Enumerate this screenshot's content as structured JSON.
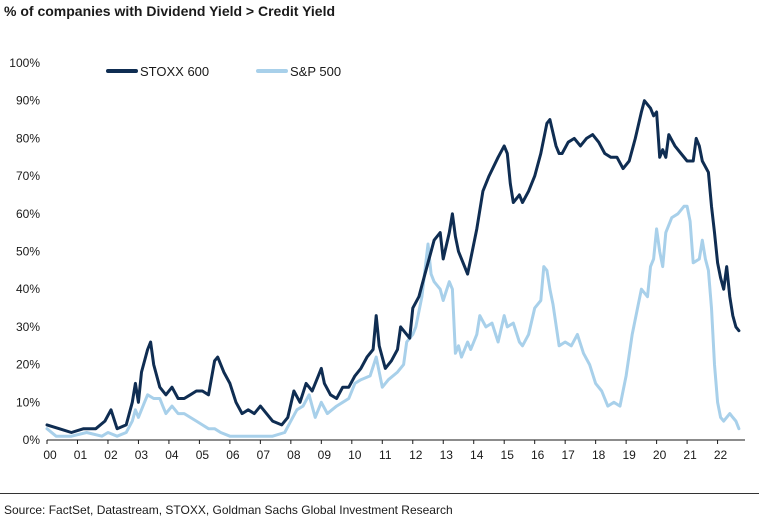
{
  "title": "% of companies with Dividend Yield > Credit Yield",
  "source": "Source: FactSet, Datastream, STOXX, Goldman Sachs Global Investment Research",
  "chart_data": {
    "type": "line",
    "title": "% of companies with Dividend Yield > Credit Yield",
    "xlabel": "",
    "ylabel": "",
    "xlim": [
      2000,
      2022.9
    ],
    "ylim": [
      0,
      100
    ],
    "xticks": [
      "00",
      "01",
      "02",
      "03",
      "04",
      "05",
      "06",
      "07",
      "08",
      "09",
      "10",
      "11",
      "12",
      "13",
      "14",
      "15",
      "16",
      "17",
      "18",
      "19",
      "20",
      "21",
      "22"
    ],
    "yticks": [
      "0%",
      "10%",
      "20%",
      "30%",
      "40%",
      "50%",
      "60%",
      "70%",
      "80%",
      "90%",
      "100%"
    ],
    "legend_position": "top-left",
    "grid": false,
    "series": [
      {
        "name": "STOXX 600",
        "color": "#0f2d52",
        "points": [
          [
            2000.0,
            4
          ],
          [
            2000.4,
            3
          ],
          [
            2000.8,
            2
          ],
          [
            2001.2,
            3
          ],
          [
            2001.6,
            3
          ],
          [
            2001.9,
            5
          ],
          [
            2002.1,
            8
          ],
          [
            2002.3,
            3
          ],
          [
            2002.6,
            4
          ],
          [
            2002.8,
            10
          ],
          [
            2002.9,
            15
          ],
          [
            2003.0,
            10
          ],
          [
            2003.1,
            18
          ],
          [
            2003.3,
            24
          ],
          [
            2003.4,
            26
          ],
          [
            2003.5,
            20
          ],
          [
            2003.7,
            14
          ],
          [
            2003.9,
            12
          ],
          [
            2004.1,
            14
          ],
          [
            2004.3,
            11
          ],
          [
            2004.5,
            11
          ],
          [
            2004.7,
            12
          ],
          [
            2004.9,
            13
          ],
          [
            2005.1,
            13
          ],
          [
            2005.3,
            12
          ],
          [
            2005.5,
            21
          ],
          [
            2005.6,
            22
          ],
          [
            2005.8,
            18
          ],
          [
            2006.0,
            15
          ],
          [
            2006.2,
            10
          ],
          [
            2006.4,
            7
          ],
          [
            2006.6,
            8
          ],
          [
            2006.8,
            7
          ],
          [
            2007.0,
            9
          ],
          [
            2007.2,
            7
          ],
          [
            2007.4,
            5
          ],
          [
            2007.7,
            4
          ],
          [
            2007.9,
            6
          ],
          [
            2008.1,
            13
          ],
          [
            2008.3,
            10
          ],
          [
            2008.5,
            15
          ],
          [
            2008.7,
            13
          ],
          [
            2008.9,
            17
          ],
          [
            2009.0,
            19
          ],
          [
            2009.1,
            15
          ],
          [
            2009.3,
            12
          ],
          [
            2009.5,
            11
          ],
          [
            2009.7,
            14
          ],
          [
            2009.9,
            14
          ],
          [
            2010.1,
            17
          ],
          [
            2010.3,
            19
          ],
          [
            2010.5,
            22
          ],
          [
            2010.7,
            24
          ],
          [
            2010.8,
            33
          ],
          [
            2010.9,
            25
          ],
          [
            2011.1,
            19
          ],
          [
            2011.3,
            21
          ],
          [
            2011.5,
            24
          ],
          [
            2011.6,
            30
          ],
          [
            2011.8,
            28
          ],
          [
            2011.9,
            27
          ],
          [
            2012.0,
            35
          ],
          [
            2012.2,
            38
          ],
          [
            2012.3,
            41
          ],
          [
            2012.5,
            47
          ],
          [
            2012.6,
            50
          ],
          [
            2012.7,
            53
          ],
          [
            2012.9,
            55
          ],
          [
            2013.0,
            48
          ],
          [
            2013.2,
            55
          ],
          [
            2013.3,
            60
          ],
          [
            2013.4,
            54
          ],
          [
            2013.5,
            50
          ],
          [
            2013.7,
            46
          ],
          [
            2013.8,
            44
          ],
          [
            2013.9,
            48
          ],
          [
            2014.1,
            56
          ],
          [
            2014.3,
            66
          ],
          [
            2014.5,
            70
          ],
          [
            2014.8,
            75
          ],
          [
            2015.0,
            78
          ],
          [
            2015.1,
            76
          ],
          [
            2015.2,
            68
          ],
          [
            2015.3,
            63
          ],
          [
            2015.5,
            65
          ],
          [
            2015.6,
            63
          ],
          [
            2015.8,
            66
          ],
          [
            2016.0,
            70
          ],
          [
            2016.2,
            76
          ],
          [
            2016.4,
            84
          ],
          [
            2016.5,
            85
          ],
          [
            2016.7,
            78
          ],
          [
            2016.8,
            76
          ],
          [
            2016.9,
            76
          ],
          [
            2017.1,
            79
          ],
          [
            2017.3,
            80
          ],
          [
            2017.5,
            78
          ],
          [
            2017.7,
            80
          ],
          [
            2017.9,
            81
          ],
          [
            2018.1,
            79
          ],
          [
            2018.3,
            76
          ],
          [
            2018.5,
            75
          ],
          [
            2018.7,
            75
          ],
          [
            2018.9,
            72
          ],
          [
            2019.1,
            74
          ],
          [
            2019.3,
            80
          ],
          [
            2019.5,
            87
          ],
          [
            2019.6,
            90
          ],
          [
            2019.8,
            88
          ],
          [
            2019.9,
            86
          ],
          [
            2020.0,
            87
          ],
          [
            2020.1,
            75
          ],
          [
            2020.2,
            77
          ],
          [
            2020.3,
            75
          ],
          [
            2020.4,
            81
          ],
          [
            2020.6,
            78
          ],
          [
            2020.8,
            76
          ],
          [
            2021.0,
            74
          ],
          [
            2021.2,
            74
          ],
          [
            2021.3,
            80
          ],
          [
            2021.4,
            78
          ],
          [
            2021.5,
            74
          ],
          [
            2021.7,
            71
          ],
          [
            2021.8,
            62
          ],
          [
            2021.9,
            55
          ],
          [
            2022.0,
            47
          ],
          [
            2022.1,
            43
          ],
          [
            2022.2,
            40
          ],
          [
            2022.3,
            46
          ],
          [
            2022.4,
            38
          ],
          [
            2022.5,
            33
          ],
          [
            2022.6,
            30
          ],
          [
            2022.7,
            29
          ]
        ]
      },
      {
        "name": "S&P 500",
        "color": "#a8d0ea",
        "points": [
          [
            2000.0,
            3
          ],
          [
            2000.3,
            1
          ],
          [
            2000.8,
            1
          ],
          [
            2001.3,
            2
          ],
          [
            2001.8,
            1
          ],
          [
            2002.0,
            2
          ],
          [
            2002.3,
            1
          ],
          [
            2002.6,
            2
          ],
          [
            2002.8,
            5
          ],
          [
            2002.9,
            8
          ],
          [
            2003.0,
            6
          ],
          [
            2003.2,
            10
          ],
          [
            2003.3,
            12
          ],
          [
            2003.5,
            11
          ],
          [
            2003.7,
            11
          ],
          [
            2003.8,
            9
          ],
          [
            2003.9,
            7
          ],
          [
            2004.1,
            9
          ],
          [
            2004.3,
            7
          ],
          [
            2004.5,
            7
          ],
          [
            2004.7,
            6
          ],
          [
            2004.9,
            5
          ],
          [
            2005.1,
            4
          ],
          [
            2005.3,
            3
          ],
          [
            2005.5,
            3
          ],
          [
            2005.7,
            2
          ],
          [
            2006.0,
            1
          ],
          [
            2006.5,
            1
          ],
          [
            2006.9,
            1
          ],
          [
            2007.4,
            1
          ],
          [
            2007.8,
            2
          ],
          [
            2008.0,
            5
          ],
          [
            2008.2,
            8
          ],
          [
            2008.4,
            9
          ],
          [
            2008.6,
            12
          ],
          [
            2008.8,
            6
          ],
          [
            2009.0,
            10
          ],
          [
            2009.2,
            7
          ],
          [
            2009.5,
            9
          ],
          [
            2009.7,
            10
          ],
          [
            2009.9,
            11
          ],
          [
            2010.1,
            15
          ],
          [
            2010.3,
            16
          ],
          [
            2010.6,
            17
          ],
          [
            2010.8,
            22
          ],
          [
            2011.0,
            14
          ],
          [
            2011.2,
            16
          ],
          [
            2011.5,
            18
          ],
          [
            2011.7,
            20
          ],
          [
            2011.8,
            26
          ],
          [
            2011.9,
            27
          ],
          [
            2012.0,
            28
          ],
          [
            2012.1,
            30
          ],
          [
            2012.3,
            38
          ],
          [
            2012.5,
            52
          ],
          [
            2012.6,
            44
          ],
          [
            2012.7,
            42
          ],
          [
            2012.9,
            40
          ],
          [
            2013.0,
            37
          ],
          [
            2013.2,
            42
          ],
          [
            2013.3,
            40
          ],
          [
            2013.4,
            23
          ],
          [
            2013.5,
            25
          ],
          [
            2013.6,
            22
          ],
          [
            2013.8,
            26
          ],
          [
            2013.9,
            24
          ],
          [
            2014.1,
            28
          ],
          [
            2014.2,
            33
          ],
          [
            2014.4,
            30
          ],
          [
            2014.6,
            31
          ],
          [
            2014.8,
            26
          ],
          [
            2015.0,
            33
          ],
          [
            2015.1,
            30
          ],
          [
            2015.3,
            31
          ],
          [
            2015.5,
            26
          ],
          [
            2015.6,
            25
          ],
          [
            2015.8,
            28
          ],
          [
            2016.0,
            35
          ],
          [
            2016.2,
            37
          ],
          [
            2016.3,
            46
          ],
          [
            2016.4,
            45
          ],
          [
            2016.5,
            40
          ],
          [
            2016.6,
            36
          ],
          [
            2016.8,
            25
          ],
          [
            2017.0,
            26
          ],
          [
            2017.2,
            25
          ],
          [
            2017.4,
            28
          ],
          [
            2017.6,
            23
          ],
          [
            2017.8,
            20
          ],
          [
            2018.0,
            15
          ],
          [
            2018.2,
            13
          ],
          [
            2018.4,
            9
          ],
          [
            2018.6,
            10
          ],
          [
            2018.8,
            9
          ],
          [
            2019.0,
            17
          ],
          [
            2019.2,
            28
          ],
          [
            2019.4,
            36
          ],
          [
            2019.5,
            40
          ],
          [
            2019.7,
            38
          ],
          [
            2019.8,
            46
          ],
          [
            2019.9,
            48
          ],
          [
            2020.0,
            56
          ],
          [
            2020.1,
            50
          ],
          [
            2020.2,
            46
          ],
          [
            2020.3,
            55
          ],
          [
            2020.5,
            59
          ],
          [
            2020.7,
            60
          ],
          [
            2020.9,
            62
          ],
          [
            2021.0,
            62
          ],
          [
            2021.1,
            58
          ],
          [
            2021.2,
            47
          ],
          [
            2021.4,
            48
          ],
          [
            2021.5,
            53
          ],
          [
            2021.6,
            48
          ],
          [
            2021.7,
            45
          ],
          [
            2021.8,
            35
          ],
          [
            2021.9,
            20
          ],
          [
            2022.0,
            10
          ],
          [
            2022.1,
            6
          ],
          [
            2022.2,
            5
          ],
          [
            2022.4,
            7
          ],
          [
            2022.5,
            6
          ],
          [
            2022.6,
            5
          ],
          [
            2022.7,
            3
          ]
        ]
      }
    ]
  }
}
